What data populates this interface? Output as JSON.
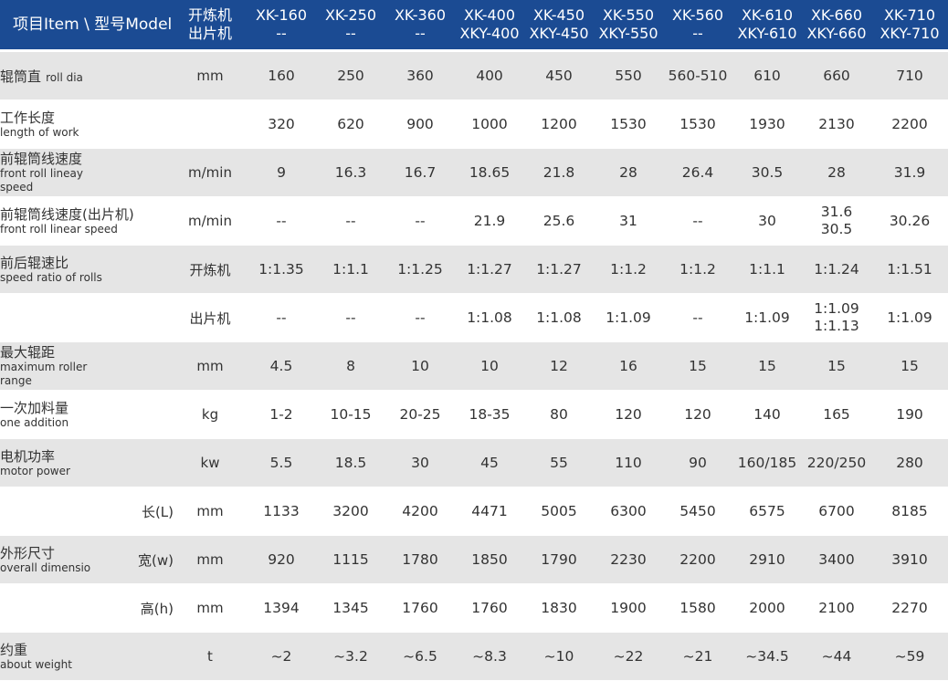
{
  "header": {
    "item": "项目Item \\ 型号Model",
    "machine_type": [
      "开炼机",
      "出片机"
    ],
    "models": [
      [
        "XK-160",
        "--"
      ],
      [
        "XK-250",
        "--"
      ],
      [
        "XK-360",
        "--"
      ],
      [
        "XK-400",
        "XKY-400"
      ],
      [
        "XK-450",
        "XKY-450"
      ],
      [
        "XK-550",
        "XKY-550"
      ],
      [
        "XK-560",
        "--"
      ],
      [
        "XK-610",
        "XKY-610"
      ],
      [
        "XK-660",
        "XKY-660"
      ],
      [
        "XK-710",
        "XKY-710"
      ]
    ]
  },
  "rows": [
    {
      "cn": "辊筒直",
      "en": "roll dia",
      "en_inline": true,
      "sub": "",
      "unit": "mm",
      "shade": true,
      "values": [
        [
          "160"
        ],
        [
          "250"
        ],
        [
          "360"
        ],
        [
          "400"
        ],
        [
          "450"
        ],
        [
          "550"
        ],
        [
          "560-510"
        ],
        [
          "610"
        ],
        [
          "660"
        ],
        [
          "710"
        ]
      ]
    },
    {
      "cn": "工作长度",
      "en": "length of work",
      "sub": "",
      "unit": "",
      "shade": false,
      "values": [
        [
          "320"
        ],
        [
          "620"
        ],
        [
          "900"
        ],
        [
          "1000"
        ],
        [
          "1200"
        ],
        [
          "1530"
        ],
        [
          "1530"
        ],
        [
          "1930"
        ],
        [
          "2130"
        ],
        [
          "2200"
        ]
      ]
    },
    {
      "cn": "前辊筒线速度",
      "en": "front roll lineay speed",
      "sub": "",
      "unit": "m/min",
      "shade": true,
      "values": [
        [
          "9"
        ],
        [
          "16.3"
        ],
        [
          "16.7"
        ],
        [
          "18.65"
        ],
        [
          "21.8"
        ],
        [
          "28"
        ],
        [
          "26.4"
        ],
        [
          "30.5"
        ],
        [
          "28"
        ],
        [
          "31.9"
        ]
      ]
    },
    {
      "cn": "前辊筒线速度(出片机)",
      "en": "front roll linear speed",
      "sub": "",
      "unit": "m/min",
      "shade": false,
      "values": [
        [
          "--"
        ],
        [
          "--"
        ],
        [
          "--"
        ],
        [
          "21.9"
        ],
        [
          "25.6"
        ],
        [
          "31"
        ],
        [
          "--"
        ],
        [
          "30"
        ],
        [
          "31.6",
          "30.5"
        ],
        [
          "30.26"
        ]
      ]
    },
    {
      "cn": "前后辊速比",
      "en": "speed ratio of rolls",
      "sub": "",
      "unit": "开炼机",
      "shade": true,
      "values": [
        [
          "1:1.35"
        ],
        [
          "1:1.1"
        ],
        [
          "1:1.25"
        ],
        [
          "1:1.27"
        ],
        [
          "1:1.27"
        ],
        [
          "1:1.2"
        ],
        [
          "1:1.2"
        ],
        [
          "1:1.1"
        ],
        [
          "1:1.24"
        ],
        [
          "1:1.51"
        ]
      ]
    },
    {
      "cn": "",
      "en": "",
      "sub": "",
      "unit": "出片机",
      "shade": false,
      "values": [
        [
          "--"
        ],
        [
          "--"
        ],
        [
          "--"
        ],
        [
          "1:1.08"
        ],
        [
          "1:1.08"
        ],
        [
          "1:1.09"
        ],
        [
          "--"
        ],
        [
          "1:1.09"
        ],
        [
          "1:1.09",
          "1:1.13"
        ],
        [
          "1:1.09"
        ]
      ]
    },
    {
      "cn": "最大辊距",
      "en": "maximum roller range",
      "sub": "",
      "unit": "mm",
      "shade": true,
      "values": [
        [
          "4.5"
        ],
        [
          "8"
        ],
        [
          "10"
        ],
        [
          "10"
        ],
        [
          "12"
        ],
        [
          "16"
        ],
        [
          "15"
        ],
        [
          "15"
        ],
        [
          "15"
        ],
        [
          "15"
        ]
      ]
    },
    {
      "cn": "一次加料量",
      "en": "one addition",
      "sub": "",
      "unit": "kg",
      "shade": false,
      "values": [
        [
          "1-2"
        ],
        [
          "10-15"
        ],
        [
          "20-25"
        ],
        [
          "18-35"
        ],
        [
          "80"
        ],
        [
          "120"
        ],
        [
          "120"
        ],
        [
          "140"
        ],
        [
          "165"
        ],
        [
          "190"
        ]
      ]
    },
    {
      "cn": "电机功率",
      "en": "motor power",
      "sub": "",
      "unit": "kw",
      "shade": true,
      "values": [
        [
          "5.5"
        ],
        [
          "18.5"
        ],
        [
          "30"
        ],
        [
          "45"
        ],
        [
          "55"
        ],
        [
          "110"
        ],
        [
          "90"
        ],
        [
          "160/185"
        ],
        [
          "220/250"
        ],
        [
          "280"
        ]
      ]
    },
    {
      "cn": "",
      "en": "",
      "sub": "长(L)",
      "unit": "mm",
      "shade": false,
      "values": [
        [
          "1133"
        ],
        [
          "3200"
        ],
        [
          "4200"
        ],
        [
          "4471"
        ],
        [
          "5005"
        ],
        [
          "6300"
        ],
        [
          "5450"
        ],
        [
          "6575"
        ],
        [
          "6700"
        ],
        [
          "8185"
        ]
      ]
    },
    {
      "cn": "外形尺寸",
      "en": "overall dimensio",
      "sub": "宽(w)",
      "unit": "mm",
      "shade": true,
      "values": [
        [
          "920"
        ],
        [
          "1115"
        ],
        [
          "1780"
        ],
        [
          "1850"
        ],
        [
          "1790"
        ],
        [
          "2230"
        ],
        [
          "2200"
        ],
        [
          "2910"
        ],
        [
          "3400"
        ],
        [
          "3910"
        ]
      ]
    },
    {
      "cn": "",
      "en": "",
      "sub": "高(h)",
      "unit": "mm",
      "shade": false,
      "values": [
        [
          "1394"
        ],
        [
          "1345"
        ],
        [
          "1760"
        ],
        [
          "1760"
        ],
        [
          "1830"
        ],
        [
          "1900"
        ],
        [
          "1580"
        ],
        [
          "2000"
        ],
        [
          "2100"
        ],
        [
          "2270"
        ]
      ]
    },
    {
      "cn": "约重",
      "en": "about weight",
      "sub": "",
      "unit": "t",
      "shade": true,
      "values": [
        [
          "~2"
        ],
        [
          "~3.2"
        ],
        [
          "~6.5"
        ],
        [
          "~8.3"
        ],
        [
          "~10"
        ],
        [
          "~22"
        ],
        [
          "~21"
        ],
        [
          "~34.5"
        ],
        [
          "~44"
        ],
        [
          "~59"
        ]
      ]
    }
  ],
  "colors": {
    "header_bg": "#1b4b93",
    "header_text": "#ffffff",
    "stripe": "#e5e5e5",
    "text": "#333333"
  }
}
